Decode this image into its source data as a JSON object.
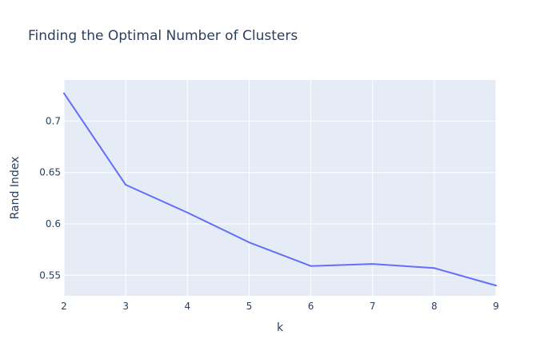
{
  "chart_data": {
    "type": "line",
    "title": "Finding the Optimal Number of Clusters",
    "xlabel": "k",
    "ylabel": "Rand Index",
    "x": [
      2,
      3,
      4,
      5,
      6,
      7,
      8,
      9
    ],
    "series": [
      {
        "values": [
          0.727,
          0.638,
          0.611,
          0.582,
          0.559,
          0.561,
          0.557,
          0.54
        ]
      }
    ],
    "xlim": [
      2,
      9
    ],
    "ylim": [
      0.53,
      0.74
    ],
    "x_ticks": [
      2,
      3,
      4,
      5,
      6,
      7,
      8,
      9
    ],
    "x_tick_labels": [
      "2",
      "3",
      "4",
      "5",
      "6",
      "7",
      "8",
      "9"
    ],
    "y_ticks": [
      0.55,
      0.6,
      0.65,
      0.7
    ],
    "y_tick_labels": [
      "0.55",
      "0.6",
      "0.65",
      "0.7"
    ],
    "grid": true,
    "legend": false,
    "colors": {
      "plot_background": "#e5ecf6",
      "grid": "#ffffff",
      "line": "#636efa",
      "text": "#2a3f5f"
    }
  }
}
